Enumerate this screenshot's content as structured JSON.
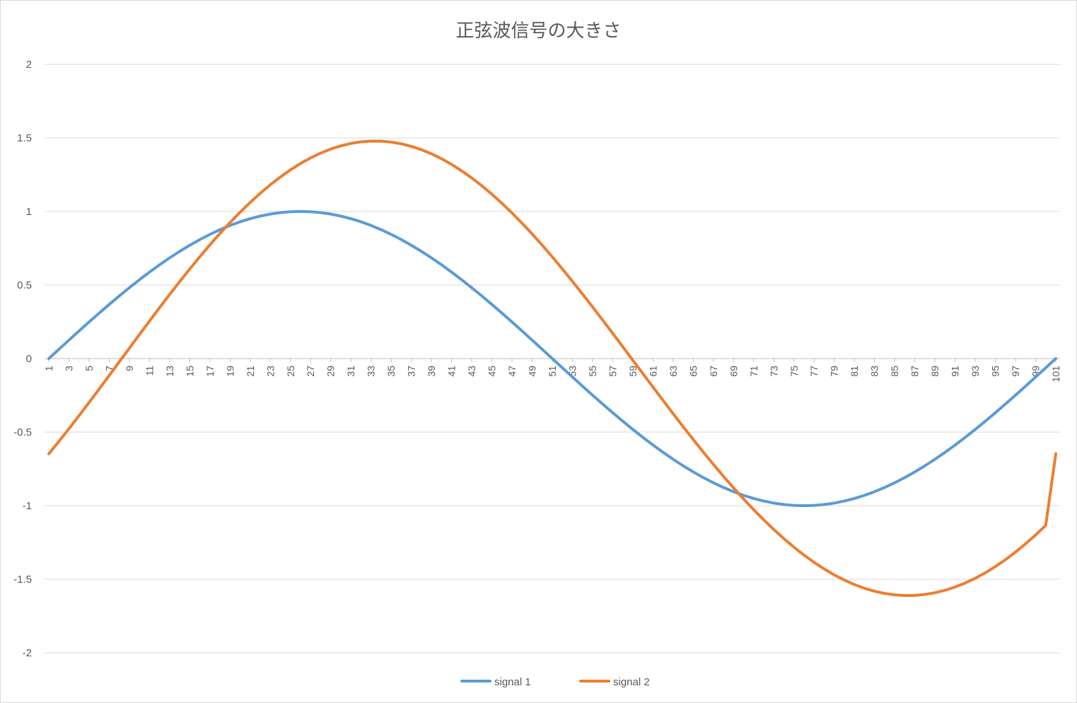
{
  "chart_data": {
    "type": "line",
    "title": "正弦波信号の大きさ",
    "xlabel": "",
    "ylabel": "",
    "ylim": [
      -2,
      2
    ],
    "yticks": [
      2,
      1.5,
      1,
      0.5,
      0,
      -0.5,
      -1,
      -1.5,
      -2
    ],
    "x_range": [
      1,
      101
    ],
    "xtick_labels": [
      1,
      3,
      5,
      7,
      9,
      11,
      13,
      15,
      17,
      19,
      21,
      23,
      25,
      27,
      29,
      31,
      33,
      35,
      37,
      39,
      41,
      43,
      45,
      47,
      49,
      51,
      53,
      55,
      57,
      59,
      61,
      63,
      65,
      67,
      69,
      71,
      73,
      75,
      77,
      79,
      81,
      83,
      85,
      87,
      89,
      91,
      93,
      95,
      97,
      99,
      101
    ],
    "grid": "horizontal",
    "legend": "bottom",
    "series": [
      {
        "name": "signal 1",
        "color": "#5B9BD5",
        "values": [
          0,
          0.0628,
          0.1253,
          0.1874,
          0.2487,
          0.309,
          0.3681,
          0.4258,
          0.4818,
          0.5358,
          0.5878,
          0.6374,
          0.6845,
          0.729,
          0.7705,
          0.809,
          0.8443,
          0.8763,
          0.9048,
          0.9298,
          0.9511,
          0.9686,
          0.9823,
          0.9921,
          0.998,
          1,
          0.998,
          0.9921,
          0.9823,
          0.9686,
          0.9511,
          0.9298,
          0.9048,
          0.8763,
          0.8443,
          0.809,
          0.7705,
          0.729,
          0.6845,
          0.6374,
          0.5878,
          0.5358,
          0.4818,
          0.4258,
          0.3681,
          0.309,
          0.2487,
          0.1874,
          0.1253,
          0.0628,
          0,
          -0.0628,
          -0.1253,
          -0.1874,
          -0.2487,
          -0.309,
          -0.3681,
          -0.4258,
          -0.4818,
          -0.5358,
          -0.5878,
          -0.6374,
          -0.6845,
          -0.729,
          -0.7705,
          -0.809,
          -0.8443,
          -0.8763,
          -0.9048,
          -0.9298,
          -0.9511,
          -0.9686,
          -0.9823,
          -0.9921,
          -0.998,
          -1,
          -0.998,
          -0.9921,
          -0.9823,
          -0.9686,
          -0.9511,
          -0.9298,
          -0.9048,
          -0.8763,
          -0.8443,
          -0.809,
          -0.7705,
          -0.729,
          -0.6845,
          -0.6374,
          -0.5878,
          -0.5358,
          -0.4818,
          -0.4258,
          -0.3681,
          -0.309,
          -0.2487,
          -0.1874,
          -0.1253,
          -0.0628,
          0
        ]
      },
      {
        "name": "signal 2",
        "color": "#ED7D31",
        "values": [
          -0.6474,
          -0.5633,
          -0.4769,
          -0.3885,
          -0.2984,
          -0.2071,
          -0.1149,
          -0.0222,
          0.0706,
          0.1632,
          0.2552,
          0.3462,
          0.4358,
          0.5236,
          0.6093,
          0.6926,
          0.7732,
          0.8506,
          0.9247,
          0.9951,
          1.0615,
          1.1237,
          1.1815,
          1.2346,
          1.2829,
          1.3262,
          1.3642,
          1.397,
          1.4244,
          1.4463,
          1.4626,
          1.4733,
          1.4784,
          1.4779,
          1.4717,
          1.46,
          1.4427,
          1.42,
          1.3919,
          1.3585,
          1.32,
          1.2764,
          1.228,
          1.175,
          1.1174,
          1.0556,
          0.9898,
          0.9202,
          0.8471,
          0.7707,
          0.6915,
          0.6095,
          0.5252,
          0.4389,
          0.3509,
          0.2616,
          0.1712,
          0.0803,
          -0.0111,
          -0.1026,
          -0.1939,
          -0.2846,
          -0.3745,
          -0.4632,
          -0.5504,
          -0.6359,
          -0.7193,
          -0.8004,
          -0.879,
          -0.9547,
          -1.0273,
          -1.0966,
          -1.1623,
          -1.2243,
          -1.2822,
          -1.336,
          -1.3854,
          -1.4302,
          -1.4704,
          -1.5057,
          -1.5361,
          -1.5614,
          -1.5816,
          -1.5965,
          -1.6062,
          -1.6106,
          -1.6097,
          -1.6034,
          -1.5919,
          -1.5751,
          -1.553,
          -1.5258,
          -1.4935,
          -1.4562,
          -1.414,
          -1.367,
          -1.3154,
          -1.2593,
          -1.1988,
          -1.1342,
          -0.6474
        ]
      }
    ]
  }
}
